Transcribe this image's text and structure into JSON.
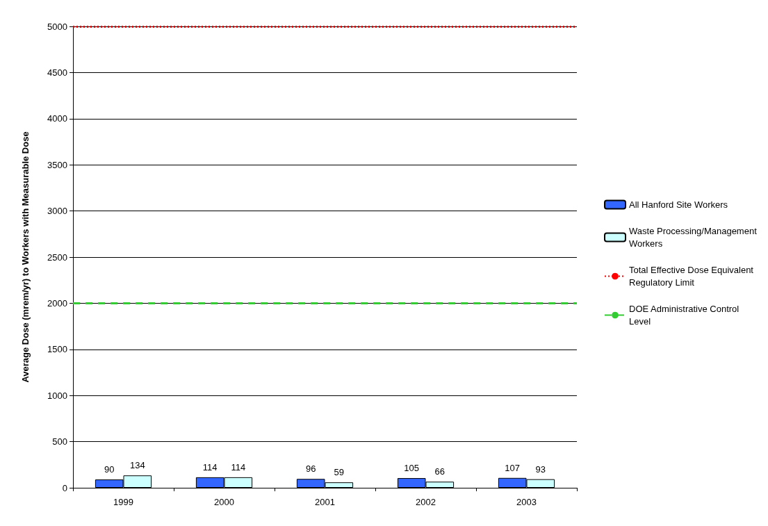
{
  "chart_data": {
    "type": "bar",
    "ylabel": "Average Dose (mrem/yr) to Workers with Measurable Dose",
    "categories": [
      "1999",
      "2000",
      "2001",
      "2002",
      "2003"
    ],
    "series": [
      {
        "name": "All Hanford Site Workers",
        "color": "#3366ff",
        "values": [
          90,
          114,
          96,
          105,
          107
        ]
      },
      {
        "name": "Waste Processing/Management Workers",
        "color": "#ccffff",
        "values": [
          134,
          114,
          59,
          66,
          93
        ]
      }
    ],
    "ref_lines": [
      {
        "axis": "y",
        "value": 5000,
        "label": "Total Effective Dose Equivalent  Regulatory Limit",
        "color": "#ff0000",
        "line_style": "dotted"
      },
      {
        "axis": "y",
        "value": 2000,
        "label": "DOE Administrative Control Level",
        "color": "#33cc33",
        "line_style": "dashed"
      }
    ],
    "ylim": [
      0,
      5000
    ],
    "yticks": [
      0,
      500,
      1000,
      1500,
      2000,
      2500,
      3000,
      3500,
      4000,
      4500,
      5000
    ],
    "grid": "y",
    "legend": "right",
    "data_labels": true
  }
}
